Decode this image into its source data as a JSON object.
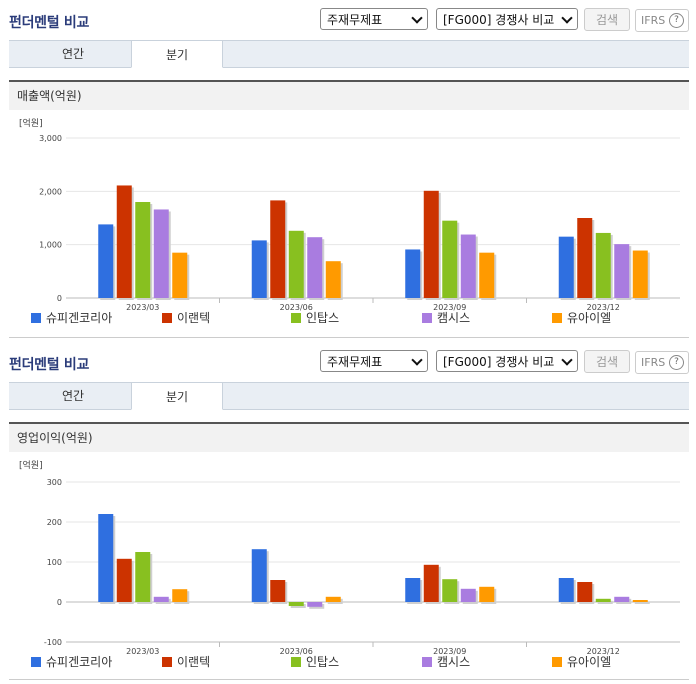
{
  "panels": [
    {
      "title": "펀더멘털 비교",
      "select1": "주재무제표",
      "select2": "[FG000] 경쟁사 비교",
      "search_label": "검색",
      "ifrs_label": "IFRS",
      "help_glyph": "?",
      "tabs": [
        {
          "label": "연간"
        },
        {
          "label": "분기"
        }
      ],
      "active_tab": 1,
      "chart_header": "매출액(억원)"
    },
    {
      "title": "펀더멘털 비교",
      "select1": "주재무제표",
      "select2": "[FG000] 경쟁사 비교",
      "search_label": "검색",
      "ifrs_label": "IFRS",
      "help_glyph": "?",
      "tabs": [
        {
          "label": "연간"
        },
        {
          "label": "분기"
        }
      ],
      "active_tab": 1,
      "chart_header": "영업이익(억원)"
    }
  ],
  "chart_data": [
    {
      "type": "bar",
      "unit_label": "[억원]",
      "categories": [
        "2023/03",
        "2023/06",
        "2023/09",
        "2023/12"
      ],
      "ylim": [
        0,
        3000
      ],
      "yticks": [
        0,
        1000,
        2000,
        3000
      ],
      "ytick_labels": [
        "0",
        "1,000",
        "2,000",
        "3,000"
      ],
      "grid": true,
      "legend": "bottom",
      "series": [
        {
          "name": "슈피겐코리아",
          "color": "#2f6fe0",
          "values": [
            1380,
            1080,
            910,
            1150
          ]
        },
        {
          "name": "이랜텍",
          "color": "#cc3300",
          "values": [
            2110,
            1830,
            2010,
            1500
          ]
        },
        {
          "name": "인탑스",
          "color": "#88c020",
          "values": [
            1800,
            1260,
            1450,
            1220
          ]
        },
        {
          "name": "캠시스",
          "color": "#a97ce0",
          "values": [
            1660,
            1140,
            1190,
            1010
          ]
        },
        {
          "name": "유아이엘",
          "color": "#ff9a00",
          "values": [
            850,
            690,
            850,
            890
          ]
        }
      ]
    },
    {
      "type": "bar",
      "unit_label": "[억원]",
      "categories": [
        "2023/03",
        "2023/06",
        "2023/09",
        "2023/12"
      ],
      "ylim": [
        -100,
        300
      ],
      "yticks": [
        -100,
        0,
        100,
        200,
        300
      ],
      "ytick_labels": [
        "-100",
        "0",
        "100",
        "200",
        "300"
      ],
      "grid": true,
      "legend": "bottom",
      "series": [
        {
          "name": "슈피겐코리아",
          "color": "#2f6fe0",
          "values": [
            220,
            132,
            60,
            60
          ]
        },
        {
          "name": "이랜텍",
          "color": "#cc3300",
          "values": [
            108,
            55,
            93,
            50
          ]
        },
        {
          "name": "인탑스",
          "color": "#88c020",
          "values": [
            125,
            -10,
            57,
            8
          ]
        },
        {
          "name": "캠시스",
          "color": "#a97ce0",
          "values": [
            13,
            -12,
            33,
            13
          ]
        },
        {
          "name": "유아이엘",
          "color": "#ff9a00",
          "values": [
            32,
            13,
            38,
            5
          ]
        }
      ]
    }
  ]
}
